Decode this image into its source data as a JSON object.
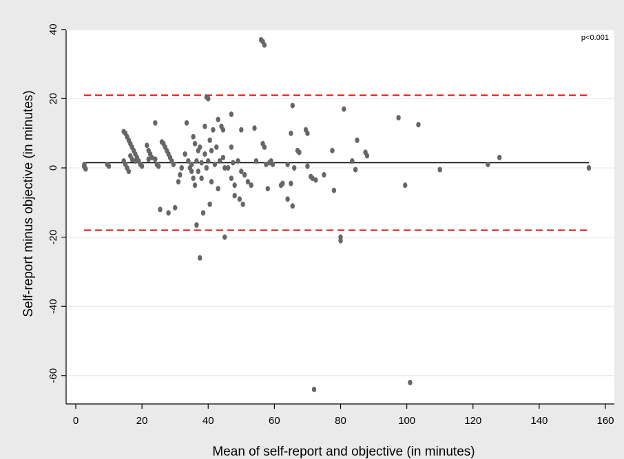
{
  "chart_data": {
    "type": "scatter",
    "title": "",
    "xlabel": "Mean of self-report and objective (in minutes)",
    "ylabel": "Self-report minus objective (in minutes)",
    "xlim": [
      0,
      160
    ],
    "ylim": [
      -68,
      40
    ],
    "x_ticks": [
      0,
      20,
      40,
      60,
      80,
      100,
      120,
      140,
      160
    ],
    "y_ticks": [
      40,
      20,
      0,
      -20,
      -40,
      -60
    ],
    "grid": "horizontal",
    "annotation": "p<0.001",
    "mean_line": {
      "y": 1.5,
      "x_range": [
        2.5,
        155
      ]
    },
    "limits_of_agreement": [
      21,
      -18
    ],
    "colors": {
      "points": "#666666",
      "mean_line": "#000000",
      "limits": "#dd1111",
      "grid": "#eaeaea",
      "background": "#eaeaea",
      "plot_background": "#ffffff"
    },
    "points": [
      {
        "x": 2.5,
        "y": 0.5
      },
      {
        "x": 2.8,
        "y": 0
      },
      {
        "x": 3,
        "y": -0.3
      },
      {
        "x": 2.6,
        "y": 1
      },
      {
        "x": 9.5,
        "y": 1
      },
      {
        "x": 10,
        "y": 0.5
      },
      {
        "x": 14.5,
        "y": 10.5
      },
      {
        "x": 15,
        "y": 10
      },
      {
        "x": 15.5,
        "y": 9
      },
      {
        "x": 16,
        "y": 8
      },
      {
        "x": 16.5,
        "y": 7
      },
      {
        "x": 17,
        "y": 6
      },
      {
        "x": 17.5,
        "y": 5
      },
      {
        "x": 18,
        "y": 4
      },
      {
        "x": 18.5,
        "y": 3
      },
      {
        "x": 19,
        "y": 2
      },
      {
        "x": 19.5,
        "y": 1
      },
      {
        "x": 20,
        "y": 0.5
      },
      {
        "x": 14.5,
        "y": 2
      },
      {
        "x": 15,
        "y": 1
      },
      {
        "x": 15.5,
        "y": 0
      },
      {
        "x": 16,
        "y": -1
      },
      {
        "x": 17,
        "y": 2.5
      },
      {
        "x": 18,
        "y": 2
      },
      {
        "x": 16.5,
        "y": 3.5
      },
      {
        "x": 21.5,
        "y": 6.5
      },
      {
        "x": 22,
        "y": 5
      },
      {
        "x": 22.5,
        "y": 4
      },
      {
        "x": 23,
        "y": 3
      },
      {
        "x": 22,
        "y": 2.5
      },
      {
        "x": 24,
        "y": 13
      },
      {
        "x": 24,
        "y": 2.5
      },
      {
        "x": 24.5,
        "y": 1
      },
      {
        "x": 25,
        "y": 0.5
      },
      {
        "x": 26,
        "y": 7.5
      },
      {
        "x": 26.5,
        "y": 7
      },
      {
        "x": 27,
        "y": 6
      },
      {
        "x": 27.5,
        "y": 5
      },
      {
        "x": 28,
        "y": 4
      },
      {
        "x": 28.5,
        "y": 3
      },
      {
        "x": 29,
        "y": 2
      },
      {
        "x": 29.5,
        "y": 1
      },
      {
        "x": 25.5,
        "y": -12
      },
      {
        "x": 28,
        "y": -13
      },
      {
        "x": 30,
        "y": -11.5
      },
      {
        "x": 31,
        "y": -4
      },
      {
        "x": 31.5,
        "y": -2
      },
      {
        "x": 32,
        "y": 0
      },
      {
        "x": 33,
        "y": 4
      },
      {
        "x": 33.5,
        "y": 13
      },
      {
        "x": 34,
        "y": 2
      },
      {
        "x": 34.5,
        "y": 0
      },
      {
        "x": 35,
        "y": 1
      },
      {
        "x": 35,
        "y": -1
      },
      {
        "x": 35.5,
        "y": -3
      },
      {
        "x": 35.5,
        "y": 9
      },
      {
        "x": 36,
        "y": 7
      },
      {
        "x": 36,
        "y": -5
      },
      {
        "x": 36.5,
        "y": 2
      },
      {
        "x": 36.5,
        "y": -16.5
      },
      {
        "x": 37,
        "y": 5
      },
      {
        "x": 37,
        "y": -1
      },
      {
        "x": 37.5,
        "y": 6
      },
      {
        "x": 37.5,
        "y": -26
      },
      {
        "x": 38,
        "y": 1.5
      },
      {
        "x": 38,
        "y": -3
      },
      {
        "x": 38.5,
        "y": -13
      },
      {
        "x": 39,
        "y": 12
      },
      {
        "x": 39,
        "y": 4
      },
      {
        "x": 39.5,
        "y": 0
      },
      {
        "x": 39.5,
        "y": 20.5
      },
      {
        "x": 40,
        "y": 20
      },
      {
        "x": 40,
        "y": 2
      },
      {
        "x": 40.5,
        "y": 8
      },
      {
        "x": 40.5,
        "y": -10.5
      },
      {
        "x": 41,
        "y": 5
      },
      {
        "x": 41,
        "y": -4
      },
      {
        "x": 41.5,
        "y": 11
      },
      {
        "x": 42,
        "y": 1
      },
      {
        "x": 42.5,
        "y": 6
      },
      {
        "x": 43,
        "y": 14
      },
      {
        "x": 43,
        "y": -6
      },
      {
        "x": 43.5,
        "y": 2
      },
      {
        "x": 44,
        "y": 12
      },
      {
        "x": 44.5,
        "y": 11
      },
      {
        "x": 44.5,
        "y": 3
      },
      {
        "x": 45,
        "y": 0
      },
      {
        "x": 45,
        "y": -20
      },
      {
        "x": 46,
        "y": 0
      },
      {
        "x": 47,
        "y": 15.5
      },
      {
        "x": 47,
        "y": 6
      },
      {
        "x": 47,
        "y": -3
      },
      {
        "x": 47.5,
        "y": 1.5
      },
      {
        "x": 48,
        "y": -5
      },
      {
        "x": 48,
        "y": -8
      },
      {
        "x": 49,
        "y": 2
      },
      {
        "x": 49.5,
        "y": -9
      },
      {
        "x": 50,
        "y": 11
      },
      {
        "x": 50,
        "y": -1
      },
      {
        "x": 50.5,
        "y": -10.5
      },
      {
        "x": 51,
        "y": -2
      },
      {
        "x": 52,
        "y": -4
      },
      {
        "x": 53,
        "y": -5
      },
      {
        "x": 54,
        "y": 11.5
      },
      {
        "x": 54.5,
        "y": 2
      },
      {
        "x": 56,
        "y": 37
      },
      {
        "x": 56.5,
        "y": 36.5
      },
      {
        "x": 57,
        "y": 35.5
      },
      {
        "x": 56.5,
        "y": 7
      },
      {
        "x": 57,
        "y": 6
      },
      {
        "x": 57.5,
        "y": 1
      },
      {
        "x": 58,
        "y": -6
      },
      {
        "x": 58.5,
        "y": 1.5
      },
      {
        "x": 59,
        "y": 2
      },
      {
        "x": 59.5,
        "y": 1
      },
      {
        "x": 62,
        "y": -5
      },
      {
        "x": 62.5,
        "y": -4.5
      },
      {
        "x": 64,
        "y": 1
      },
      {
        "x": 64,
        "y": -9
      },
      {
        "x": 65,
        "y": 10
      },
      {
        "x": 65,
        "y": -4.5
      },
      {
        "x": 65.5,
        "y": 18
      },
      {
        "x": 65.5,
        "y": -11
      },
      {
        "x": 66,
        "y": 0
      },
      {
        "x": 67,
        "y": 5
      },
      {
        "x": 67.5,
        "y": 4.5
      },
      {
        "x": 69.5,
        "y": 11
      },
      {
        "x": 70,
        "y": 10
      },
      {
        "x": 70,
        "y": 0.5
      },
      {
        "x": 71,
        "y": -2.5
      },
      {
        "x": 71.5,
        "y": -3
      },
      {
        "x": 72,
        "y": -64
      },
      {
        "x": 72.5,
        "y": -3.5
      },
      {
        "x": 75,
        "y": -2
      },
      {
        "x": 77.5,
        "y": 5
      },
      {
        "x": 78,
        "y": -6.5
      },
      {
        "x": 80,
        "y": -21
      },
      {
        "x": 80,
        "y": -20
      },
      {
        "x": 81,
        "y": 17
      },
      {
        "x": 83.5,
        "y": 2
      },
      {
        "x": 84.5,
        "y": -0.5
      },
      {
        "x": 85,
        "y": 8
      },
      {
        "x": 87.5,
        "y": 4.5
      },
      {
        "x": 88,
        "y": 3.5
      },
      {
        "x": 97.5,
        "y": 14.5
      },
      {
        "x": 99.5,
        "y": -5
      },
      {
        "x": 101,
        "y": -62
      },
      {
        "x": 103.5,
        "y": 12.5
      },
      {
        "x": 110,
        "y": -0.5
      },
      {
        "x": 124.5,
        "y": 1
      },
      {
        "x": 128,
        "y": 3
      },
      {
        "x": 155,
        "y": 0
      }
    ]
  }
}
